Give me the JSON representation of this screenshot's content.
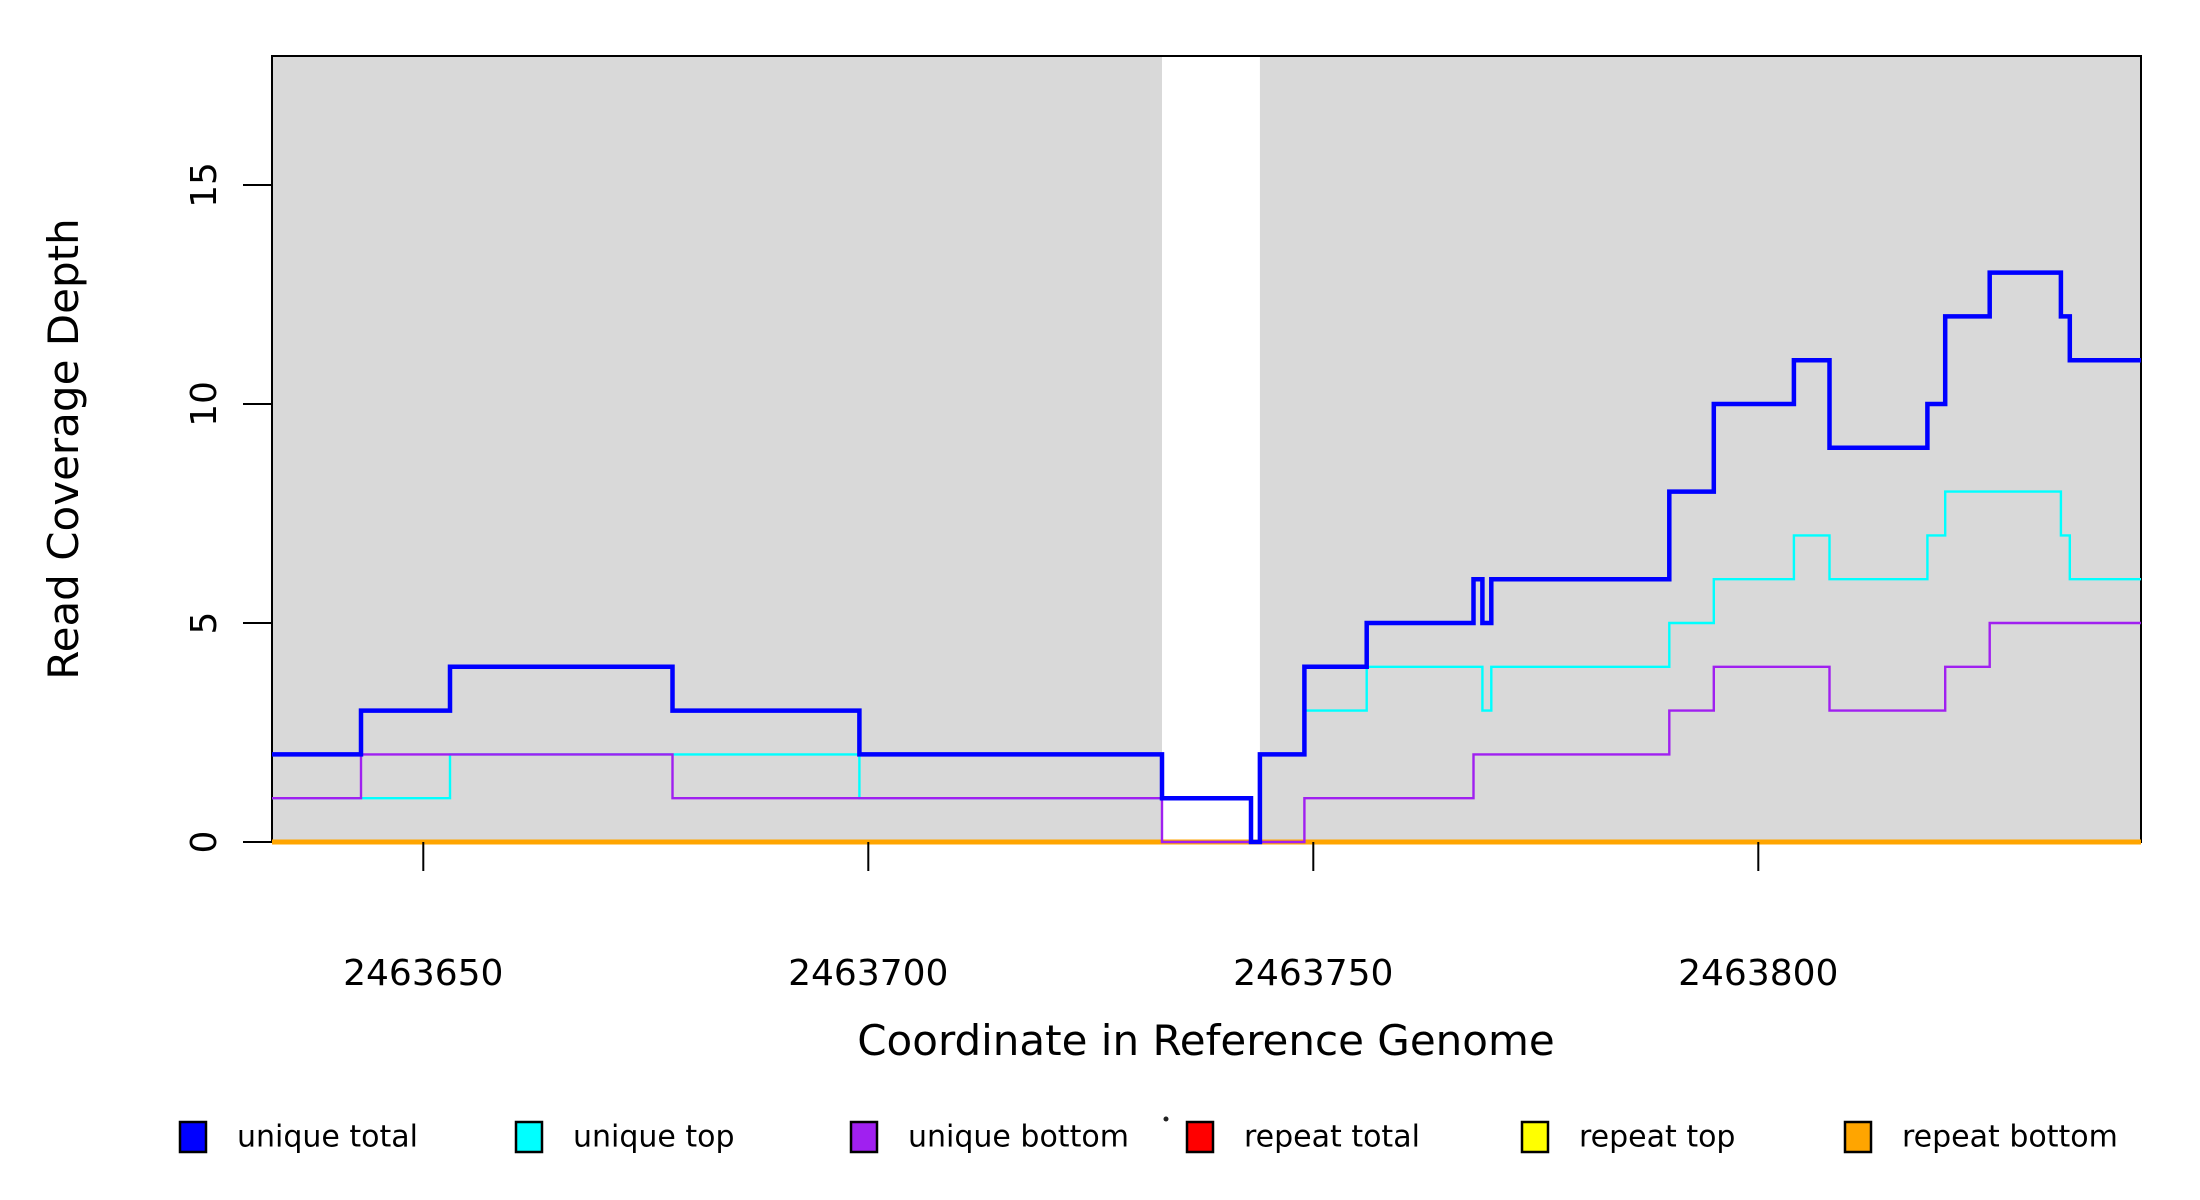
{
  "chart_data": {
    "type": "line",
    "subtype": "step-after-coverage-plot",
    "title": "",
    "xlabel": "Coordinate in Reference Genome",
    "ylabel": "Read Coverage Depth",
    "x_range": [
      2463633,
      2463843
    ],
    "y_range": [
      0,
      17.95
    ],
    "x_ticks": [
      2463650,
      2463700,
      2463750,
      2463800
    ],
    "y_ticks": [
      0,
      5,
      10,
      15
    ],
    "grid": false,
    "legend_position": "bottom",
    "background_shading": {
      "color": "#D9D9D9",
      "regions": [
        [
          2463633,
          2463733
        ],
        [
          2463744,
          2463843
        ]
      ]
    },
    "series": [
      {
        "name": "repeat total",
        "color": "#FF0000",
        "line_width": 4,
        "points": [
          [
            2463633,
            0
          ]
        ]
      },
      {
        "name": "repeat top",
        "color": "#FFFF00",
        "line_width": 4,
        "points": [
          [
            2463633,
            0
          ]
        ]
      },
      {
        "name": "repeat bottom",
        "color": "#FFA500",
        "line_width": 5,
        "points": [
          [
            2463633,
            0
          ]
        ]
      },
      {
        "name": "unique top",
        "color": "#00FFFF",
        "line_width": 2.4,
        "points": [
          [
            2463633,
            1
          ],
          [
            2463653,
            2
          ],
          [
            2463699,
            1
          ],
          [
            2463743,
            0
          ],
          [
            2463744,
            2
          ],
          [
            2463749,
            3
          ],
          [
            2463756,
            4
          ],
          [
            2463769,
            3
          ],
          [
            2463770,
            4
          ],
          [
            2463790,
            5
          ],
          [
            2463795,
            6
          ],
          [
            2463804,
            7
          ],
          [
            2463808,
            6
          ],
          [
            2463819,
            7
          ],
          [
            2463821,
            8
          ],
          [
            2463834,
            7
          ],
          [
            2463835,
            6
          ]
        ]
      },
      {
        "name": "unique bottom",
        "color": "#A020F0",
        "line_width": 2.4,
        "points": [
          [
            2463633,
            1
          ],
          [
            2463643,
            2
          ],
          [
            2463678,
            1
          ],
          [
            2463733,
            0
          ],
          [
            2463749,
            1
          ],
          [
            2463768,
            2
          ],
          [
            2463790,
            3
          ],
          [
            2463795,
            4
          ],
          [
            2463808,
            3
          ],
          [
            2463821,
            4
          ],
          [
            2463826,
            5
          ]
        ]
      },
      {
        "name": "unique total",
        "color": "#0000FF",
        "line_width": 4.5,
        "points": [
          [
            2463633,
            2
          ],
          [
            2463643,
            3
          ],
          [
            2463653,
            4
          ],
          [
            2463678,
            3
          ],
          [
            2463699,
            2
          ],
          [
            2463733,
            1
          ],
          [
            2463743,
            0
          ],
          [
            2463744,
            2
          ],
          [
            2463749,
            4
          ],
          [
            2463756,
            5
          ],
          [
            2463768,
            6
          ],
          [
            2463769,
            5
          ],
          [
            2463770,
            6
          ],
          [
            2463790,
            8
          ],
          [
            2463795,
            10
          ],
          [
            2463804,
            11
          ],
          [
            2463808,
            9
          ],
          [
            2463819,
            10
          ],
          [
            2463821,
            12
          ],
          [
            2463826,
            13
          ],
          [
            2463834,
            12
          ],
          [
            2463835,
            11
          ]
        ]
      }
    ],
    "legend": [
      {
        "label": "unique total",
        "color": "#0000FF"
      },
      {
        "label": "unique top",
        "color": "#00FFFF"
      },
      {
        "label": "unique bottom",
        "color": "#A020F0"
      },
      {
        "label": "repeat total",
        "color": "#FF0000"
      },
      {
        "label": "repeat top",
        "color": "#FFFF00"
      },
      {
        "label": "repeat bottom",
        "color": "#FFA500"
      }
    ],
    "stray_mark": "."
  }
}
